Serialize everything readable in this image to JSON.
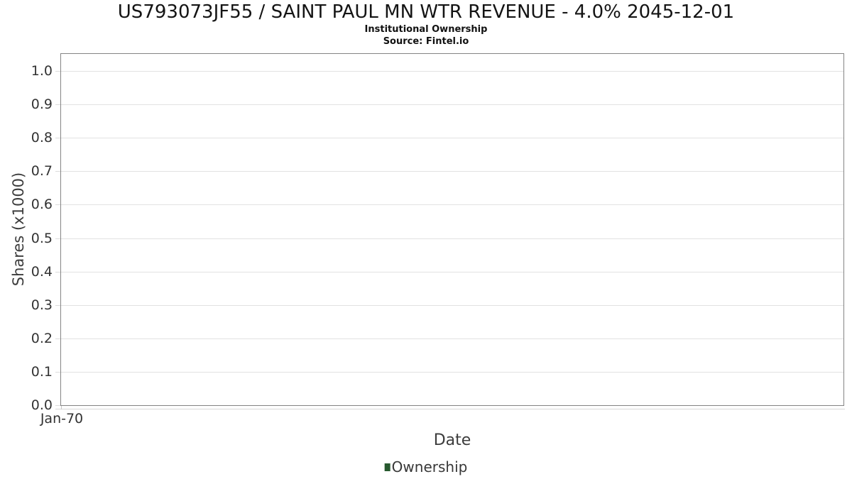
{
  "colors": {
    "background": "#ffffff",
    "title_text": "#141414",
    "tick_text": "#333333",
    "axis_title_text": "#3c3c3c",
    "gridline": "#e2e2e2",
    "plot_border": "#848484",
    "legend_green": "#27592f"
  },
  "chart_data": {
    "type": "line",
    "title": "US793073JF55 / SAINT PAUL MN WTR REVENUE - 4.0% 2045-12-01",
    "subtitle": "Institutional Ownership",
    "source": "Source: Fintel.io",
    "xlabel": "Date",
    "ylabel": "Shares (x1000)",
    "x_tick_labels": [
      "Jan-70"
    ],
    "y_tick_labels": [
      "0.0",
      "0.1",
      "0.2",
      "0.3",
      "0.4",
      "0.5",
      "0.6",
      "0.7",
      "0.8",
      "0.9",
      "1.0"
    ],
    "ylim": [
      0.0,
      1.055
    ],
    "grid": "horizontal",
    "legend_position": "bottom-center",
    "series": [
      {
        "name": "Ownership",
        "color": "#27592f",
        "points": []
      }
    ]
  }
}
